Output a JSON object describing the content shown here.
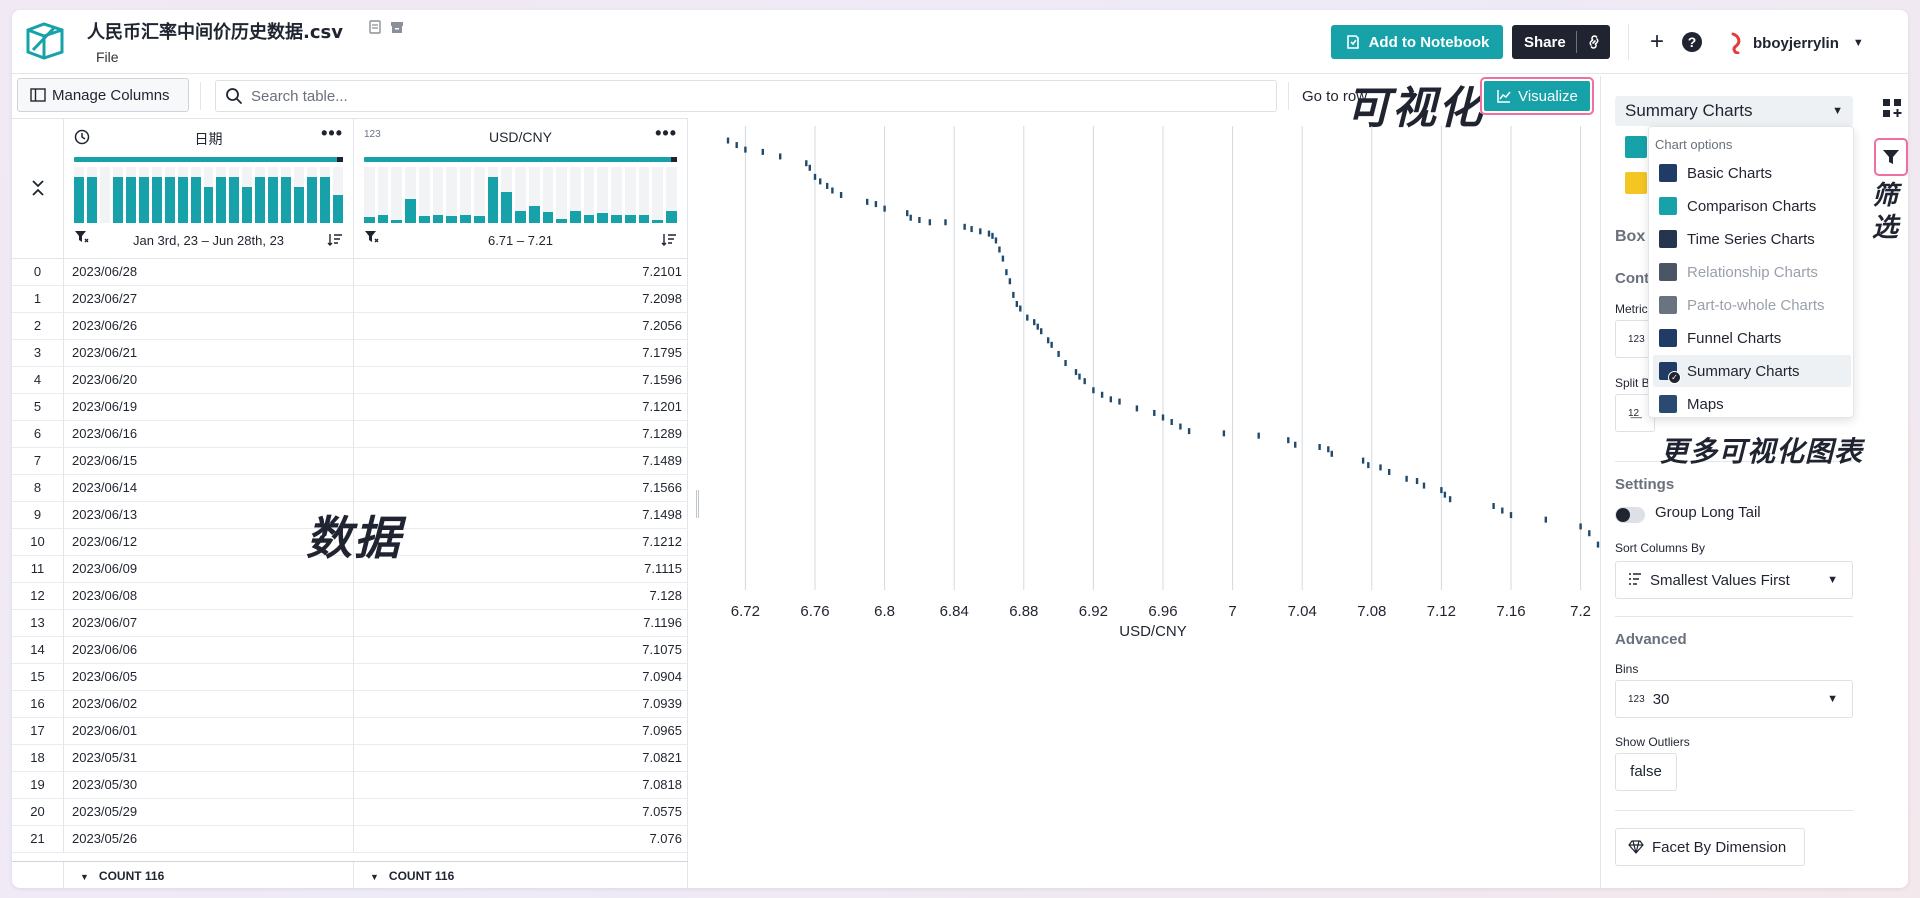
{
  "app": {
    "file_title": "人民币汇率中间价历史数据.csv",
    "file_menu": "File",
    "user_name": "bboyjerrylin"
  },
  "header": {
    "add_to_notebook": "Add to Notebook",
    "share": "Share"
  },
  "toolbar": {
    "manage_columns": "Manage Columns",
    "search_placeholder": "Search table...",
    "goto_row": "Go to row",
    "visualize": "Visualize"
  },
  "annotations": {
    "visualize": "可视化",
    "data": "数据",
    "more_charts": "更多可视化图表",
    "filter": "筛选"
  },
  "table": {
    "columns": [
      {
        "name": "日期",
        "type_label": "",
        "range": "Jan 3rd, 23 – Jun 28th, 23",
        "histogram": [
          0.82,
          0.82,
          0.0,
          0.82,
          0.82,
          0.82,
          0.82,
          0.82,
          0.82,
          0.82,
          0.65,
          0.82,
          0.82,
          0.65,
          0.82,
          0.82,
          0.82,
          0.65,
          0.82,
          0.82,
          0.5
        ]
      },
      {
        "name": "USD/CNY",
        "type_label": "123",
        "range": "6.71 – 7.21",
        "histogram": [
          0.1,
          0.15,
          0.06,
          0.42,
          0.12,
          0.15,
          0.12,
          0.15,
          0.13,
          0.82,
          0.55,
          0.22,
          0.3,
          0.2,
          0.08,
          0.22,
          0.14,
          0.18,
          0.15,
          0.14,
          0.15,
          0.06,
          0.22
        ]
      }
    ],
    "rows": [
      {
        "idx": "0",
        "date": "2023/06/28",
        "value": "7.2101"
      },
      {
        "idx": "1",
        "date": "2023/06/27",
        "value": "7.2098"
      },
      {
        "idx": "2",
        "date": "2023/06/26",
        "value": "7.2056"
      },
      {
        "idx": "3",
        "date": "2023/06/21",
        "value": "7.1795"
      },
      {
        "idx": "4",
        "date": "2023/06/20",
        "value": "7.1596"
      },
      {
        "idx": "5",
        "date": "2023/06/19",
        "value": "7.1201"
      },
      {
        "idx": "6",
        "date": "2023/06/16",
        "value": "7.1289"
      },
      {
        "idx": "7",
        "date": "2023/06/15",
        "value": "7.1489"
      },
      {
        "idx": "8",
        "date": "2023/06/14",
        "value": "7.1566"
      },
      {
        "idx": "9",
        "date": "2023/06/13",
        "value": "7.1498"
      },
      {
        "idx": "10",
        "date": "2023/06/12",
        "value": "7.1212"
      },
      {
        "idx": "11",
        "date": "2023/06/09",
        "value": "7.1115"
      },
      {
        "idx": "12",
        "date": "2023/06/08",
        "value": "7.128"
      },
      {
        "idx": "13",
        "date": "2023/06/07",
        "value": "7.1196"
      },
      {
        "idx": "14",
        "date": "2023/06/06",
        "value": "7.1075"
      },
      {
        "idx": "15",
        "date": "2023/06/05",
        "value": "7.0904"
      },
      {
        "idx": "16",
        "date": "2023/06/02",
        "value": "7.0939"
      },
      {
        "idx": "17",
        "date": "2023/06/01",
        "value": "7.0965"
      },
      {
        "idx": "18",
        "date": "2023/05/31",
        "value": "7.0821"
      },
      {
        "idx": "19",
        "date": "2023/05/30",
        "value": "7.0818"
      },
      {
        "idx": "20",
        "date": "2023/05/29",
        "value": "7.0575"
      },
      {
        "idx": "21",
        "date": "2023/05/26",
        "value": "7.076"
      }
    ],
    "footer": {
      "date": "COUNT 116",
      "usd": "COUNT 116"
    }
  },
  "chart_data": {
    "type": "scatter",
    "xlabel": "USD/CNY",
    "xlim": [
      6.71,
      7.21
    ],
    "x_ticks": [
      "6.72",
      "6.76",
      "6.8",
      "6.84",
      "6.88",
      "6.92",
      "6.96",
      "7",
      "7.04",
      "7.08",
      "7.12",
      "7.16",
      "7.2"
    ],
    "grid": "vertical",
    "points": [
      [
        6.71,
        0.01
      ],
      [
        6.715,
        0.02
      ],
      [
        6.72,
        0.03
      ],
      [
        6.73,
        0.035
      ],
      [
        6.74,
        0.045
      ],
      [
        6.755,
        0.06
      ],
      [
        6.757,
        0.07
      ],
      [
        6.76,
        0.09
      ],
      [
        6.763,
        0.1
      ],
      [
        6.767,
        0.11
      ],
      [
        6.77,
        0.12
      ],
      [
        6.775,
        0.13
      ],
      [
        6.79,
        0.145
      ],
      [
        6.795,
        0.15
      ],
      [
        6.8,
        0.16
      ],
      [
        6.813,
        0.17
      ],
      [
        6.815,
        0.18
      ],
      [
        6.82,
        0.185
      ],
      [
        6.826,
        0.19
      ],
      [
        6.835,
        0.19
      ],
      [
        6.846,
        0.2
      ],
      [
        6.85,
        0.205
      ],
      [
        6.855,
        0.21
      ],
      [
        6.86,
        0.215
      ],
      [
        6.862,
        0.22
      ],
      [
        6.864,
        0.23
      ],
      [
        6.866,
        0.25
      ],
      [
        6.868,
        0.27
      ],
      [
        6.87,
        0.3
      ],
      [
        6.872,
        0.32
      ],
      [
        6.874,
        0.35
      ],
      [
        6.876,
        0.37
      ],
      [
        6.878,
        0.38
      ],
      [
        6.882,
        0.4
      ],
      [
        6.886,
        0.41
      ],
      [
        6.888,
        0.42
      ],
      [
        6.89,
        0.43
      ],
      [
        6.894,
        0.45
      ],
      [
        6.896,
        0.46
      ],
      [
        6.9,
        0.48
      ],
      [
        6.904,
        0.5
      ],
      [
        6.91,
        0.52
      ],
      [
        6.912,
        0.53
      ],
      [
        6.915,
        0.54
      ],
      [
        6.92,
        0.56
      ],
      [
        6.925,
        0.57
      ],
      [
        6.93,
        0.58
      ],
      [
        6.935,
        0.585
      ],
      [
        6.945,
        0.6
      ],
      [
        6.955,
        0.61
      ],
      [
        6.96,
        0.62
      ],
      [
        6.965,
        0.63
      ],
      [
        6.97,
        0.64
      ],
      [
        6.975,
        0.65
      ],
      [
        6.995,
        0.655
      ],
      [
        7.015,
        0.66
      ],
      [
        7.032,
        0.67
      ],
      [
        7.036,
        0.68
      ],
      [
        7.05,
        0.685
      ],
      [
        7.055,
        0.69
      ],
      [
        7.057,
        0.7
      ],
      [
        7.075,
        0.715
      ],
      [
        7.078,
        0.725
      ],
      [
        7.085,
        0.73
      ],
      [
        7.09,
        0.74
      ],
      [
        7.1,
        0.755
      ],
      [
        7.106,
        0.76
      ],
      [
        7.11,
        0.77
      ],
      [
        7.12,
        0.78
      ],
      [
        7.122,
        0.79
      ],
      [
        7.125,
        0.8
      ],
      [
        7.15,
        0.815
      ],
      [
        7.155,
        0.825
      ],
      [
        7.16,
        0.835
      ],
      [
        7.18,
        0.845
      ],
      [
        7.2,
        0.86
      ],
      [
        7.205,
        0.875
      ],
      [
        7.21,
        0.9
      ]
    ]
  },
  "right_panel": {
    "summary_select": "Summary Charts",
    "box_title": "Box",
    "cont_title": "Cont",
    "metric_label": "Metric",
    "split_label": "Split B",
    "settings_title": "Settings",
    "group_long_tail": "Group Long Tail",
    "sort_label": "Sort Columns By",
    "sort_value": "Smallest Values First",
    "advanced_title": "Advanced",
    "bins_label": "Bins",
    "bins_type": "123",
    "bins_value": "30",
    "outliers_label": "Show Outliers",
    "outliers_value": "false",
    "facet": "Facet By Dimension"
  },
  "dropdown": {
    "heading": "Chart options",
    "items": [
      {
        "label": "Basic Charts",
        "color": "#1f3b66"
      },
      {
        "label": "Comparison Charts",
        "color": "#17a2a9"
      },
      {
        "label": "Time Series Charts",
        "color": "#26344d"
      },
      {
        "label": "Relationship Charts",
        "color": "#4b5563"
      },
      {
        "label": "Part-to-whole Charts",
        "color": "#6b7280"
      },
      {
        "label": "Funnel Charts",
        "color": "#1f3b66"
      },
      {
        "label": "Summary Charts",
        "color": "#1f3b66"
      },
      {
        "label": "Maps",
        "color": "#2b4a72"
      }
    ],
    "selected": "Summary Charts",
    "disabled": [
      "Relationship Charts",
      "Part-to-whole Charts"
    ]
  },
  "colors": {
    "accent": "#17a2a9",
    "highlight": "#f06fa3",
    "dark": "#1f2430",
    "point": "#1f4a6e"
  }
}
